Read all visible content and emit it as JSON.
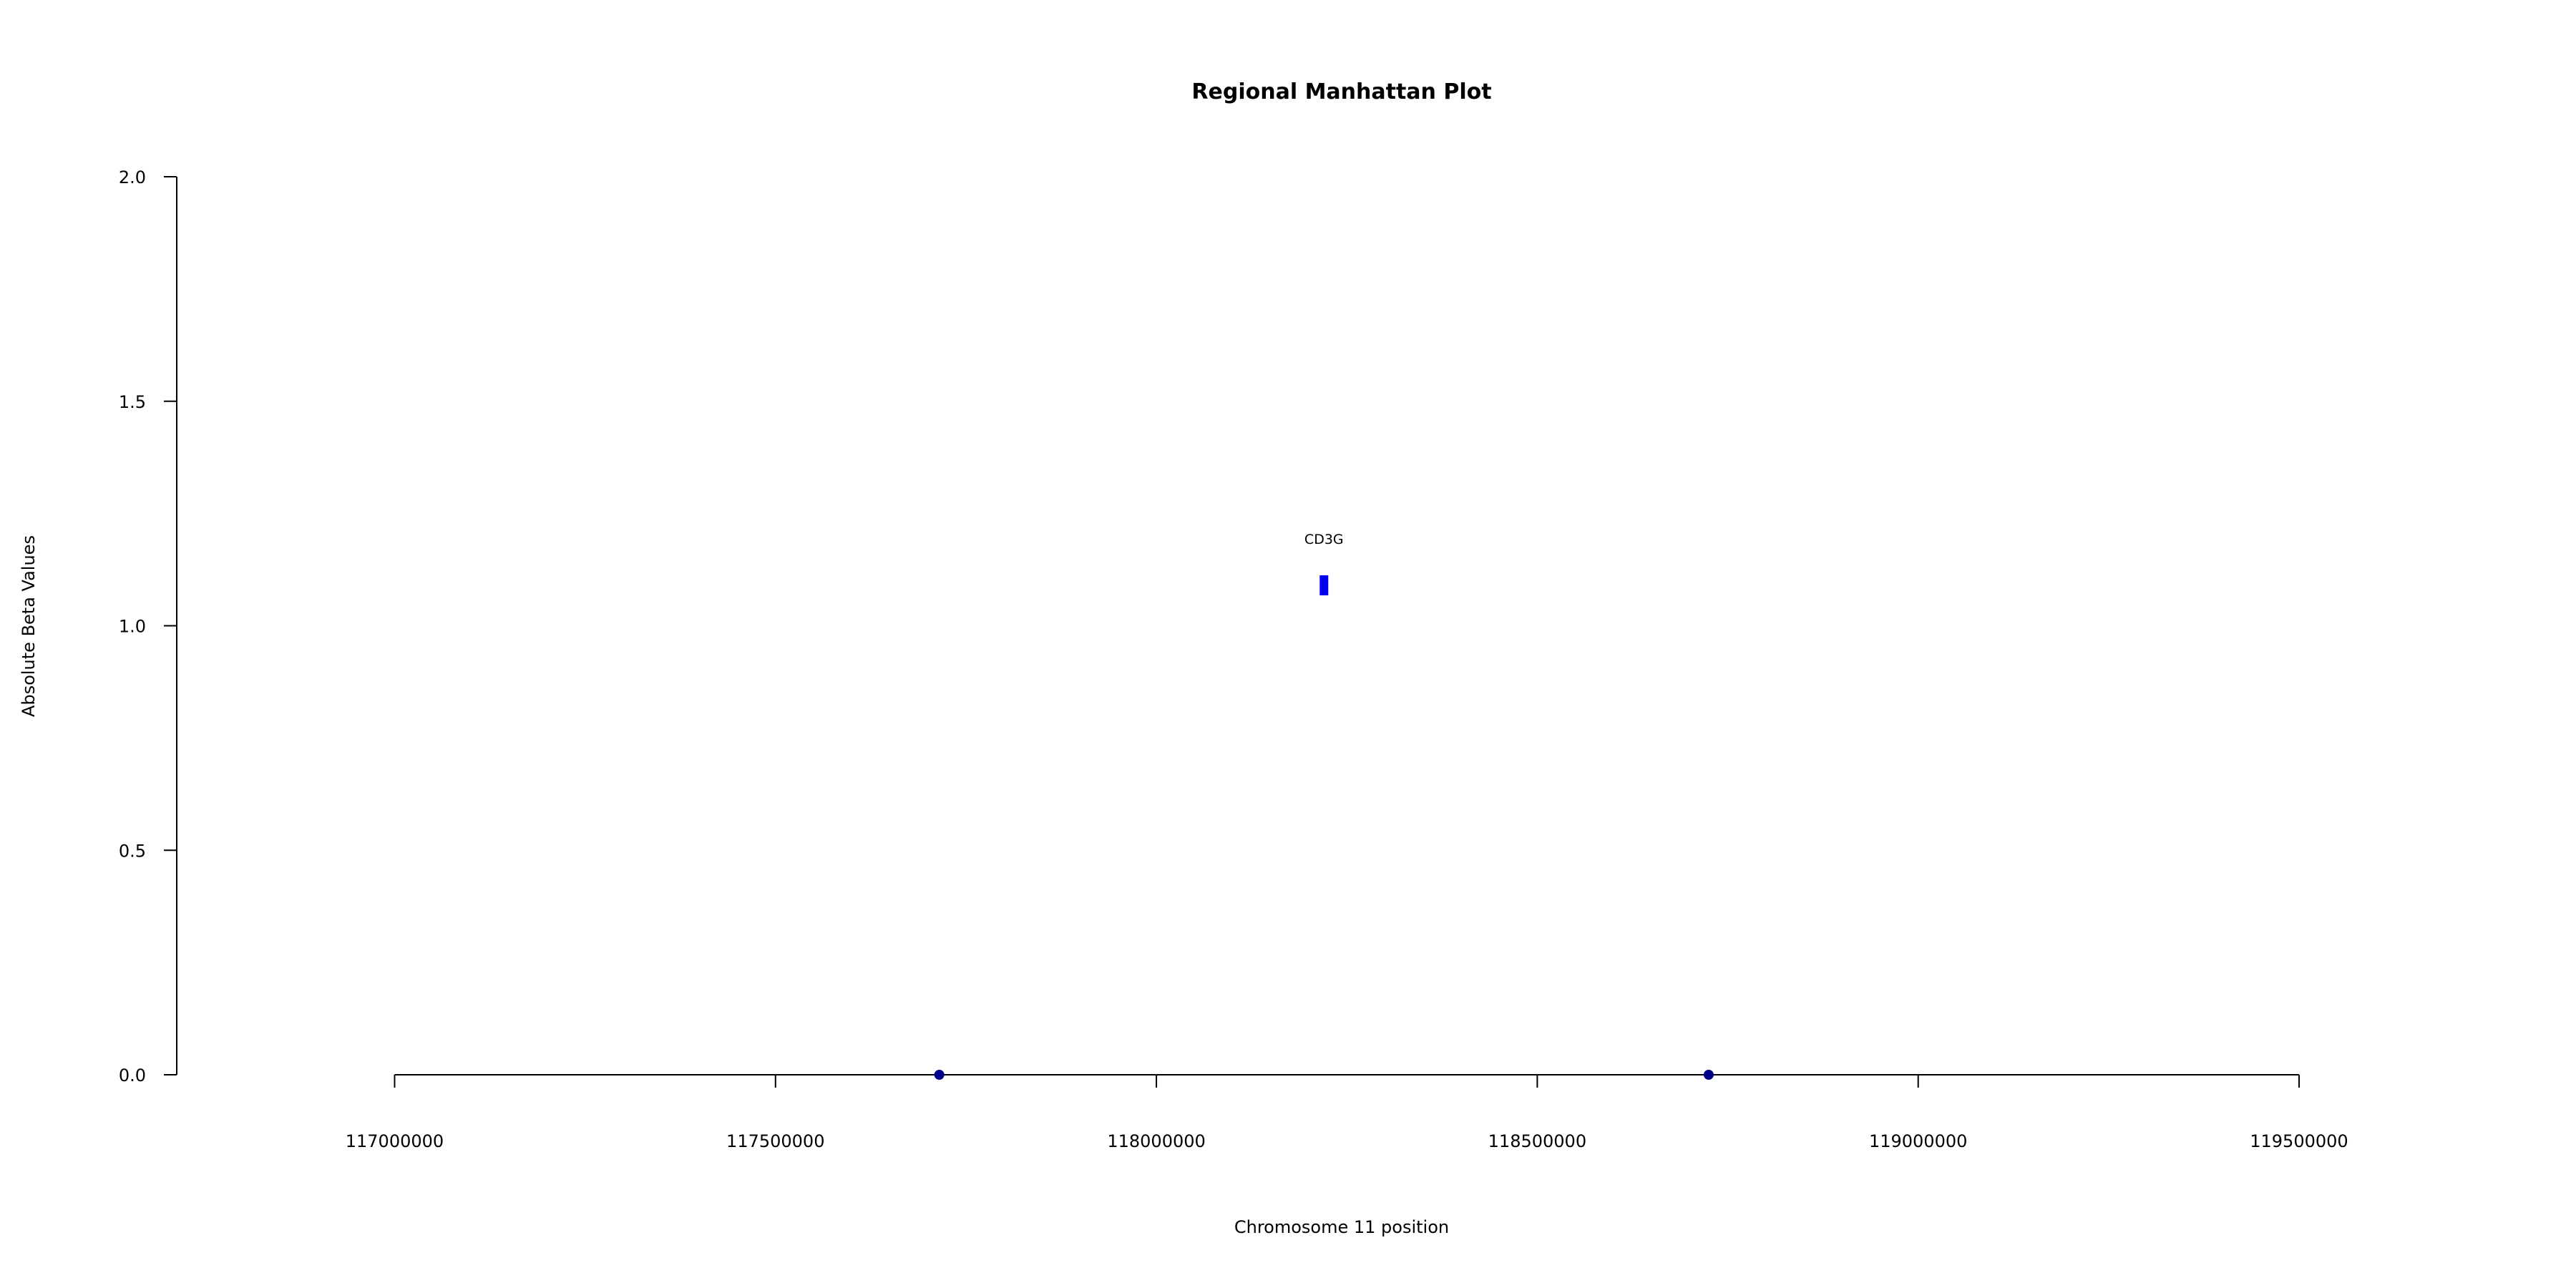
{
  "chart_data": {
    "type": "scatter",
    "title": "Regional Manhattan Plot",
    "xlabel": "Chromosome 11 position",
    "ylabel": "Absolute Beta Values",
    "xlim": [
      116714000,
      119779000
    ],
    "ylim": [
      0,
      2
    ],
    "x_ticks": [
      117000000,
      117500000,
      118000000,
      118500000,
      119000000,
      119500000
    ],
    "x_tick_labels": [
      "117000000",
      "117500000",
      "118000000",
      "118500000",
      "119000000",
      "119500000"
    ],
    "y_ticks": [
      0,
      0.5,
      1,
      1.5,
      2
    ],
    "y_tick_labels": [
      "0.0",
      "0.5",
      "1.0",
      "1.5",
      "2.0"
    ],
    "grid": false,
    "legend": "none",
    "series": [
      {
        "color": "#00008B",
        "marker": "circle",
        "points": [
          {
            "x": 117715000,
            "y": 0
          },
          {
            "x": 118725000,
            "y": 0
          }
        ]
      },
      {
        "color": "#0000EE",
        "marker": "bar",
        "points": [
          {
            "x": 118220000,
            "y": 1.09,
            "label": "CD3G"
          }
        ]
      }
    ],
    "annotations": [
      {
        "text": "CD3G",
        "x": 118220000,
        "y": 1.09
      }
    ]
  }
}
